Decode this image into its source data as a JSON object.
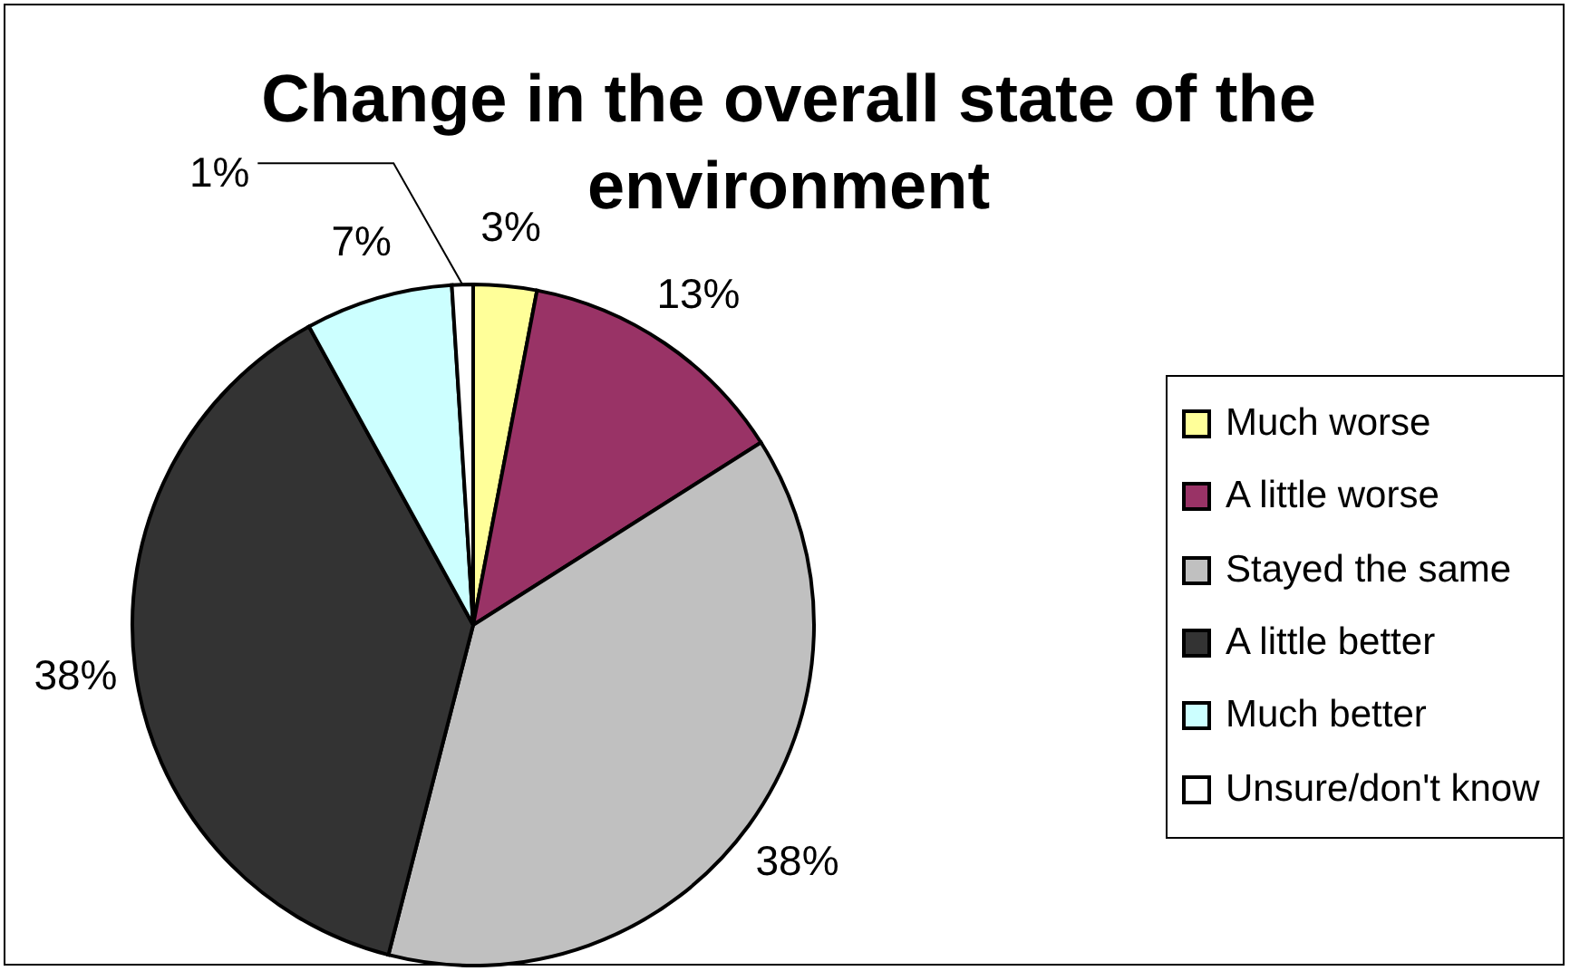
{
  "chart_data": {
    "type": "pie",
    "title": "Change in the overall state of the environment",
    "categories": [
      "Much worse",
      "A little worse",
      "Stayed the same",
      "A little better",
      "Much better",
      "Unsure/don't know"
    ],
    "values": [
      3,
      13,
      38,
      38,
      7,
      1
    ],
    "colors": [
      "#ffff99",
      "#993366",
      "#c0c0c0",
      "#333333",
      "#ccffff",
      "#ffffff"
    ],
    "value_labels": [
      "3%",
      "13%",
      "38%",
      "38%",
      "7%",
      "1%"
    ],
    "legend": "right"
  }
}
